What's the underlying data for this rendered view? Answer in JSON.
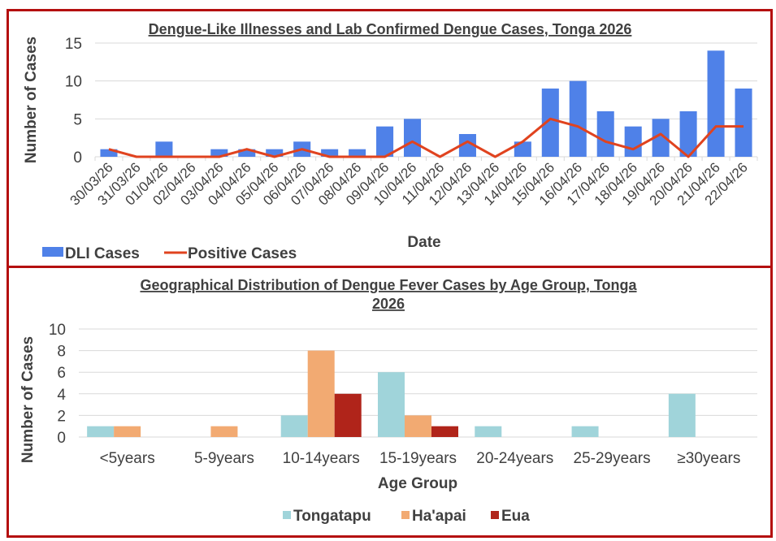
{
  "chart_data": [
    {
      "type": "bar",
      "title": "Dengue-Like Illnesses and Lab Confirmed Dengue Cases, Tonga 2026",
      "xlabel": "Date",
      "ylabel": "Number of Cases",
      "ylim": [
        0,
        15
      ],
      "yticks": [
        0,
        5,
        10,
        15
      ],
      "grid": true,
      "legend": "bottom-left",
      "categories": [
        "30/03/26",
        "31/03/26",
        "01/04/26",
        "02/04/26",
        "03/04/26",
        "04/04/26",
        "05/04/26",
        "06/04/26",
        "07/04/26",
        "08/04/26",
        "09/04/26",
        "10/04/26",
        "11/04/26",
        "12/04/26",
        "13/04/26",
        "14/04/26",
        "15/04/26",
        "16/04/26",
        "17/04/26",
        "18/04/26",
        "19/04/26",
        "20/04/26",
        "21/04/26",
        "22/04/26"
      ],
      "series": [
        {
          "name": "DLI Cases",
          "type": "bar",
          "color": "#4f81e8",
          "values": [
            1,
            0,
            2,
            0,
            1,
            1,
            1,
            2,
            1,
            1,
            4,
            5,
            0,
            3,
            0,
            2,
            9,
            10,
            6,
            4,
            5,
            6,
            14,
            9
          ]
        },
        {
          "name": "Positive Cases",
          "type": "line",
          "color": "#e0431f",
          "values": [
            1,
            0,
            0,
            0,
            0,
            1,
            0,
            1,
            0,
            0,
            0,
            2,
            0,
            2,
            0,
            2,
            5,
            4,
            2,
            1,
            3,
            0,
            4,
            4
          ]
        }
      ]
    },
    {
      "type": "bar",
      "title": "Geographical Distribution of Dengue Fever Cases by Age Group, Tonga 2026",
      "title_lines": [
        "Geographical Distribution of Dengue Fever Cases by Age Group, Tonga",
        "2026"
      ],
      "xlabel": "Age Group",
      "ylabel": "Number of Cases",
      "ylim": [
        0,
        10
      ],
      "yticks": [
        0,
        2,
        4,
        6,
        8,
        10
      ],
      "grid": true,
      "legend": "bottom-center",
      "categories": [
        "<5years",
        "5-9years",
        "10-14years",
        "15-19years",
        "20-24years",
        "25-29years",
        "≥30years"
      ],
      "series": [
        {
          "name": "Tongatapu",
          "color": "#a0d4da",
          "values": [
            1,
            0,
            2,
            6,
            1,
            1,
            4
          ]
        },
        {
          "name": "Ha'apai",
          "color": "#f2aa72",
          "values": [
            1,
            1,
            8,
            2,
            0,
            0,
            0
          ]
        },
        {
          "name": "Eua",
          "color": "#b0241a",
          "values": [
            0,
            0,
            4,
            1,
            0,
            0,
            0
          ]
        }
      ]
    }
  ]
}
